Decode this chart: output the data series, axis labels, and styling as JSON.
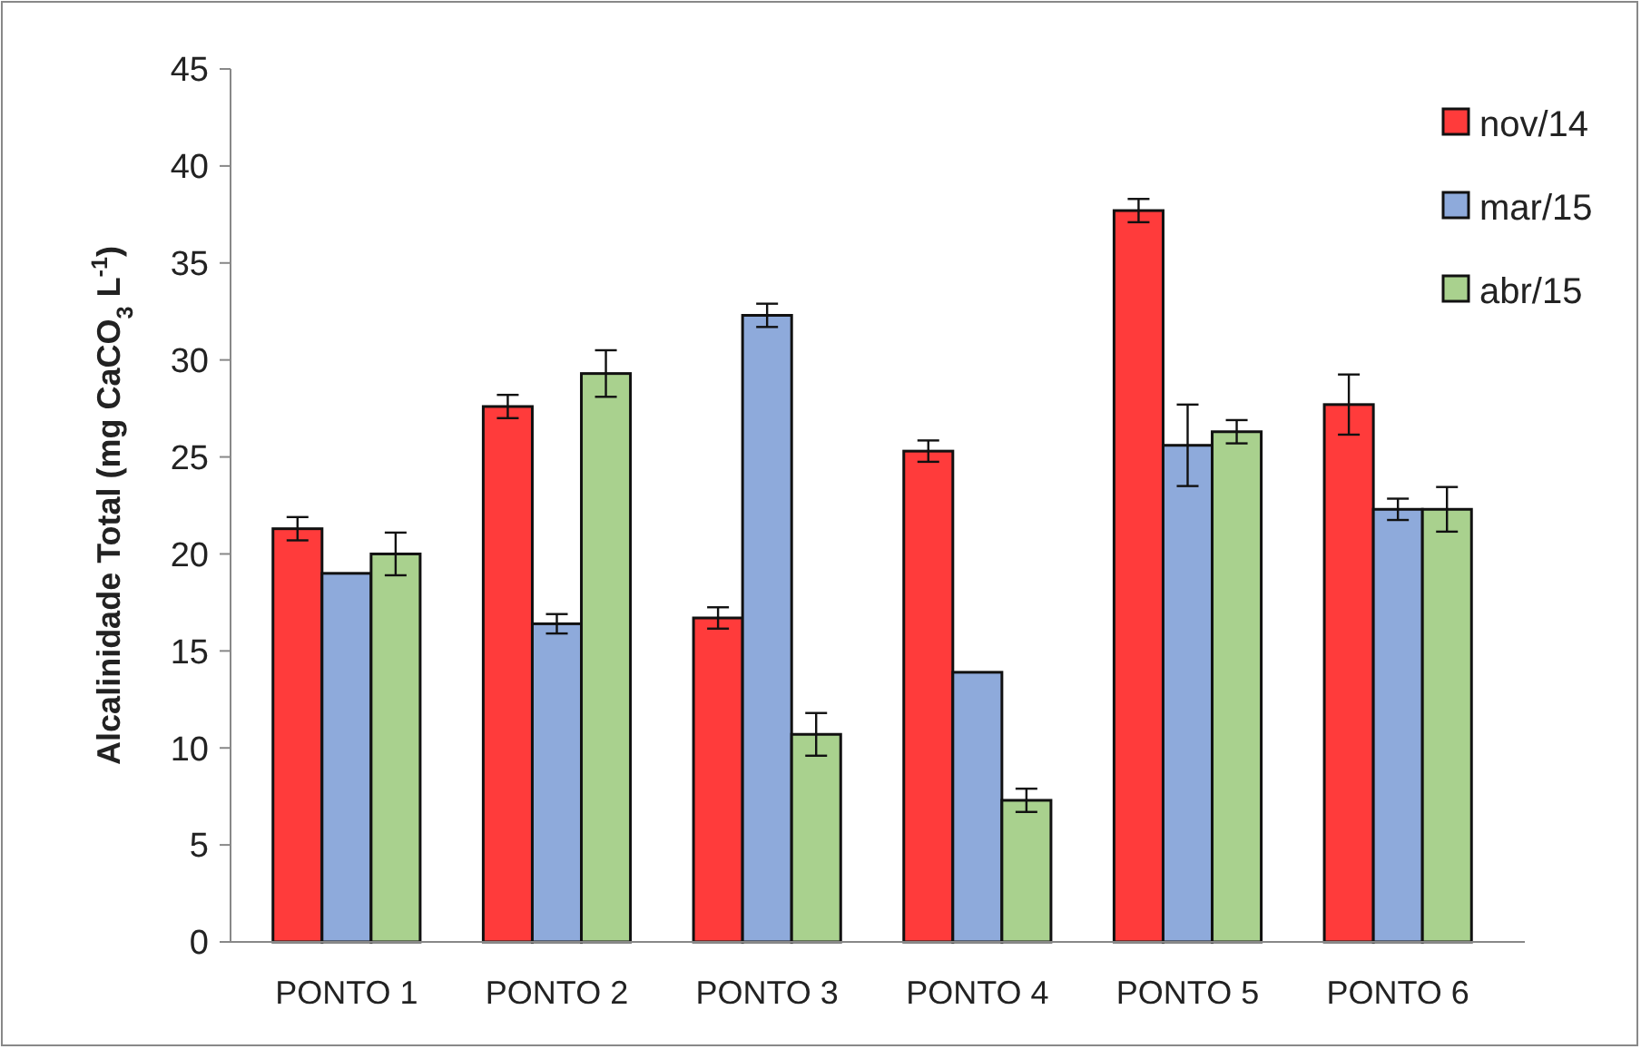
{
  "chart_data": {
    "type": "bar",
    "ylabel": "Alcalinidade Total (mg CaCO$_{3}$ L$^{-1}$)",
    "categories": [
      "PONTO 1",
      "PONTO 2",
      "PONTO 3",
      "PONTO 4",
      "PONTO 5",
      "PONTO 6"
    ],
    "series": [
      {
        "name": "nov/14",
        "color": "#ff3b3b",
        "values": [
          21.3,
          27.6,
          16.7,
          25.3,
          37.7,
          27.7
        ],
        "errors": [
          0.6,
          0.6,
          0.55,
          0.55,
          0.6,
          1.55
        ]
      },
      {
        "name": "mar/15",
        "color": "#8eaadb",
        "values": [
          19.0,
          16.4,
          32.3,
          13.9,
          25.6,
          22.3
        ],
        "errors": [
          null,
          0.5,
          0.6,
          null,
          2.1,
          0.55
        ]
      },
      {
        "name": "abr/15",
        "color": "#a9d18e",
        "values": [
          20.0,
          29.3,
          10.7,
          7.3,
          26.3,
          22.3
        ],
        "errors": [
          1.1,
          1.2,
          1.1,
          0.6,
          0.6,
          1.15
        ]
      }
    ],
    "ylim": [
      0,
      45
    ],
    "yticks": [
      0,
      5,
      10,
      15,
      20,
      25,
      30,
      35,
      40,
      45
    ],
    "grid": false,
    "legend": "top right"
  }
}
